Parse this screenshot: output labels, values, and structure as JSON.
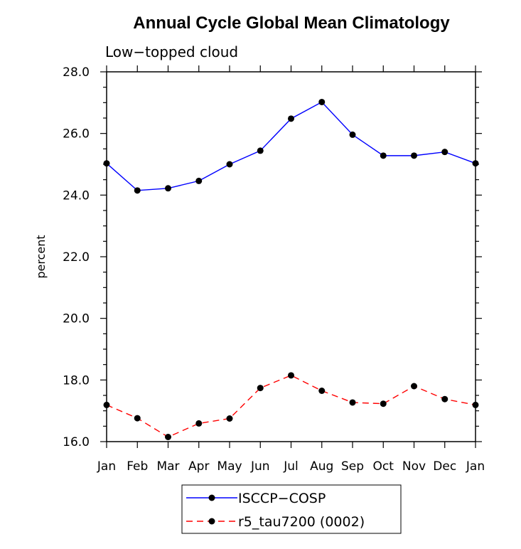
{
  "chart_data": {
    "type": "line",
    "title": "Annual Cycle Global Mean Climatology",
    "subtitle": "Low−topped cloud",
    "xlabel": "",
    "ylabel": "percent",
    "categories": [
      "Jan",
      "Feb",
      "Mar",
      "Apr",
      "May",
      "Jun",
      "Jul",
      "Aug",
      "Sep",
      "Oct",
      "Nov",
      "Dec",
      "Jan"
    ],
    "ylim": [
      16.0,
      28.0
    ],
    "yticks": [
      "16.0",
      "18.0",
      "20.0",
      "22.0",
      "24.0",
      "26.0",
      "28.0"
    ],
    "series": [
      {
        "name": "ISCCP−COSP",
        "color": "#0000ff",
        "dash": "solid",
        "values": [
          25.03,
          24.15,
          24.22,
          24.46,
          25.0,
          25.44,
          26.48,
          27.02,
          25.96,
          25.28,
          25.28,
          25.4,
          25.03
        ]
      },
      {
        "name": "r5_tau7200 (0002)",
        "color": "#ff0000",
        "dash": "dashed",
        "values": [
          17.19,
          16.76,
          16.15,
          16.59,
          16.75,
          17.74,
          18.15,
          17.65,
          17.27,
          17.23,
          17.8,
          17.38,
          17.19
        ]
      }
    ],
    "legend_position": "bottom-center",
    "grid": false
  }
}
